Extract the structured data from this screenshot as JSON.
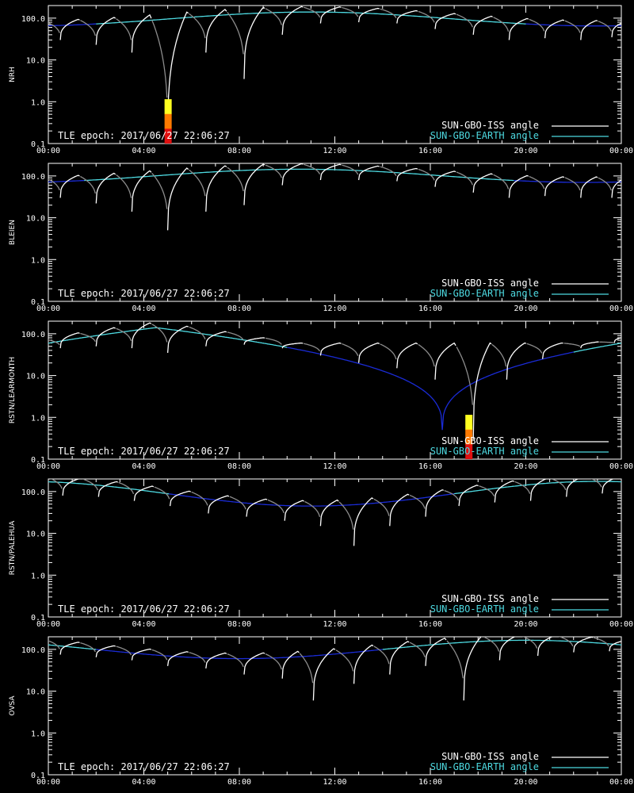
{
  "colors": {
    "background": "#000000",
    "axis": "#ffffff",
    "iss_sunlit": "#ffffff",
    "iss_shadow": "#8c8c8c",
    "earth_day": "#4dd9e0",
    "earth_night": "#1a2bd6",
    "bar": [
      "#e01010",
      "#ff7a00",
      "#ffff20"
    ]
  },
  "legend": {
    "iss": "SUN-GBO-ISS angle",
    "earth": "SUN-GBO-EARTH angle"
  },
  "epoch_label": "TLE epoch: 2017/06/27 22:06:27",
  "x_ticks": [
    "00:00",
    "04:00",
    "08:00",
    "12:00",
    "16:00",
    "20:00",
    "00:00"
  ],
  "y_ticks": [
    "0.1",
    "1.0",
    "10.0",
    "100.0"
  ],
  "chart_data": [
    {
      "type": "line",
      "ylabel": "NRH",
      "yscale": "log",
      "ylim": [
        0.1,
        200
      ],
      "xlim": [
        0,
        24
      ],
      "earth_angle": {
        "min_hour": 1,
        "min_value": 65,
        "max_hour": 11,
        "max_value": 140,
        "dark_hours": [
          [
            20,
            24
          ],
          [
            0,
            2
          ]
        ]
      },
      "iss_dips": [
        {
          "hour": 0.5,
          "value": 30
        },
        {
          "hour": 2.0,
          "value": 23
        },
        {
          "hour": 3.5,
          "value": 15
        },
        {
          "hour": 5.0,
          "value": 0.1
        },
        {
          "hour": 6.6,
          "value": 15
        },
        {
          "hour": 8.2,
          "value": 3.5
        },
        {
          "hour": 9.8,
          "value": 40
        },
        {
          "hour": 11.4,
          "value": 75
        },
        {
          "hour": 13.0,
          "value": 80
        },
        {
          "hour": 14.6,
          "value": 75
        },
        {
          "hour": 16.2,
          "value": 55
        },
        {
          "hour": 17.8,
          "value": 40
        },
        {
          "hour": 19.3,
          "value": 30
        },
        {
          "hour": 20.8,
          "value": 33
        },
        {
          "hour": 22.3,
          "value": 30
        },
        {
          "hour": 23.6,
          "value": 35
        }
      ],
      "bars": [
        {
          "hour": 5.0,
          "top": 1.15
        }
      ]
    },
    {
      "type": "line",
      "ylabel": "BLEIEN",
      "yscale": "log",
      "ylim": [
        0.1,
        200
      ],
      "xlim": [
        0,
        24
      ],
      "earth_angle": {
        "min_hour": 0.5,
        "min_value": 70,
        "max_hour": 10.5,
        "max_value": 145,
        "dark_hours": [
          [
            19.5,
            24
          ],
          [
            0,
            1.5
          ]
        ]
      },
      "iss_dips": [
        {
          "hour": 0.5,
          "value": 30
        },
        {
          "hour": 2.0,
          "value": 22
        },
        {
          "hour": 3.5,
          "value": 14
        },
        {
          "hour": 5.0,
          "value": 5
        },
        {
          "hour": 6.6,
          "value": 14
        },
        {
          "hour": 8.2,
          "value": 20
        },
        {
          "hour": 9.8,
          "value": 60
        },
        {
          "hour": 11.4,
          "value": 80
        },
        {
          "hour": 13.0,
          "value": 80
        },
        {
          "hour": 14.6,
          "value": 75
        },
        {
          "hour": 16.2,
          "value": 55
        },
        {
          "hour": 17.8,
          "value": 40
        },
        {
          "hour": 19.3,
          "value": 30
        },
        {
          "hour": 20.8,
          "value": 33
        },
        {
          "hour": 22.3,
          "value": 30
        },
        {
          "hour": 23.6,
          "value": 30
        }
      ],
      "bars": []
    },
    {
      "type": "line",
      "ylabel": "RSTN/LEARMONTH",
      "yscale": "log",
      "ylim": [
        0.1,
        200
      ],
      "xlim": [
        0,
        24
      ],
      "earth_angle": {
        "min_hour": 16.5,
        "min_value": 0.5,
        "max_hour": 4,
        "max_value": 140,
        "dark_hours": [
          [
            10,
            22
          ]
        ]
      },
      "iss_dips": [
        {
          "hour": 0.5,
          "value": 45
        },
        {
          "hour": 2.0,
          "value": 50
        },
        {
          "hour": 3.5,
          "value": 45
        },
        {
          "hour": 5.0,
          "value": 35
        },
        {
          "hour": 6.6,
          "value": 50
        },
        {
          "hour": 8.2,
          "value": 55
        },
        {
          "hour": 9.8,
          "value": 45
        },
        {
          "hour": 11.4,
          "value": 30
        },
        {
          "hour": 13.0,
          "value": 20
        },
        {
          "hour": 14.6,
          "value": 15
        },
        {
          "hour": 16.2,
          "value": 8
        },
        {
          "hour": 17.8,
          "value": 0.3
        },
        {
          "hour": 19.2,
          "value": 8
        },
        {
          "hour": 20.7,
          "value": 25
        },
        {
          "hour": 22.3,
          "value": 45
        },
        {
          "hour": 23.7,
          "value": 60
        }
      ],
      "bars": [
        {
          "hour": 17.6,
          "top": 1.15
        }
      ]
    },
    {
      "type": "line",
      "ylabel": "RSTN/PALEHUA",
      "yscale": "log",
      "ylim": [
        0.1,
        200
      ],
      "xlim": [
        0,
        24
      ],
      "earth_angle": {
        "min_hour": 11,
        "min_value": 45,
        "max_hour": 23,
        "max_value": 175,
        "dark_hours": [
          [
            5,
            17
          ]
        ]
      },
      "iss_dips": [
        {
          "hour": 0.6,
          "value": 80
        },
        {
          "hour": 2.1,
          "value": 75
        },
        {
          "hour": 3.6,
          "value": 60
        },
        {
          "hour": 5.1,
          "value": 45
        },
        {
          "hour": 6.7,
          "value": 30
        },
        {
          "hour": 8.3,
          "value": 25
        },
        {
          "hour": 9.9,
          "value": 20
        },
        {
          "hour": 11.4,
          "value": 15
        },
        {
          "hour": 12.8,
          "value": 5
        },
        {
          "hour": 14.3,
          "value": 15
        },
        {
          "hour": 15.8,
          "value": 25
        },
        {
          "hour": 17.2,
          "value": 45
        },
        {
          "hour": 18.7,
          "value": 55
        },
        {
          "hour": 20.2,
          "value": 60
        },
        {
          "hour": 21.7,
          "value": 75
        },
        {
          "hour": 23.2,
          "value": 90
        }
      ],
      "bars": []
    },
    {
      "type": "line",
      "ylabel": "OVSA",
      "yscale": "log",
      "ylim": [
        0.1,
        200
      ],
      "xlim": [
        0,
        24
      ],
      "earth_angle": {
        "min_hour": 8,
        "min_value": 60,
        "max_hour": 20,
        "max_value": 165,
        "dark_hours": [
          [
            2,
            14
          ]
        ]
      },
      "iss_dips": [
        {
          "hour": 0.5,
          "value": 75
        },
        {
          "hour": 2.0,
          "value": 65
        },
        {
          "hour": 3.5,
          "value": 55
        },
        {
          "hour": 5.0,
          "value": 40
        },
        {
          "hour": 6.6,
          "value": 35
        },
        {
          "hour": 8.2,
          "value": 25
        },
        {
          "hour": 9.8,
          "value": 20
        },
        {
          "hour": 11.1,
          "value": 6
        },
        {
          "hour": 12.8,
          "value": 15
        },
        {
          "hour": 14.3,
          "value": 25
        },
        {
          "hour": 15.8,
          "value": 40
        },
        {
          "hour": 17.4,
          "value": 6
        },
        {
          "hour": 18.9,
          "value": 55
        },
        {
          "hour": 20.5,
          "value": 70
        },
        {
          "hour": 22.0,
          "value": 85
        },
        {
          "hour": 23.5,
          "value": 90
        }
      ],
      "bars": []
    }
  ]
}
